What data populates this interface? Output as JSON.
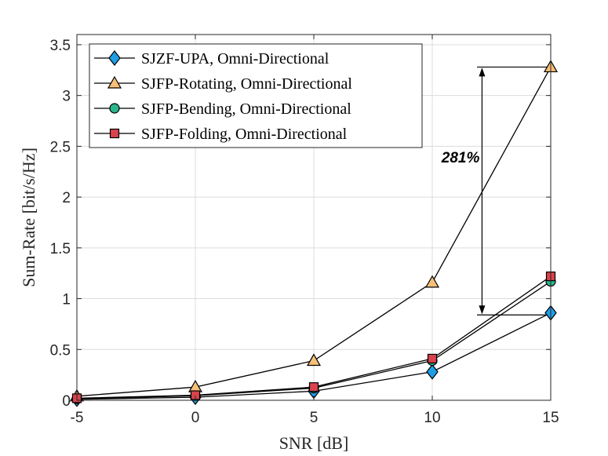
{
  "chart_data": {
    "type": "line",
    "title": "",
    "xlabel": "SNR [dB]",
    "ylabel": "Sum-Rate [bit/s/Hz]",
    "x": [
      -5,
      0,
      5,
      10,
      15
    ],
    "xlim": [
      -5,
      15
    ],
    "ylim": [
      0,
      3.6
    ],
    "xticks": [
      -5,
      0,
      5,
      10,
      15
    ],
    "xtick_labels": [
      "-5",
      "0",
      "5",
      "10",
      "15"
    ],
    "yticks": [
      0,
      0.5,
      1,
      1.5,
      2,
      2.5,
      3,
      3.5
    ],
    "ytick_labels": [
      "0",
      "0.5",
      "1",
      "1.5",
      "2",
      "2.5",
      "3",
      "3.5"
    ],
    "grid": true,
    "legend_position": "top-left",
    "series": [
      {
        "name": "SJZF-UPA, Omni-Directional",
        "marker": "diamond",
        "color": "#1f9ee6",
        "values": [
          0.01,
          0.03,
          0.09,
          0.28,
          0.86
        ]
      },
      {
        "name": "SJFP-Rotating, Omni-Directional",
        "marker": "triangle",
        "color": "#f7bf78",
        "values": [
          0.04,
          0.13,
          0.39,
          1.16,
          3.28
        ]
      },
      {
        "name": "SJFP-Bending, Omni-Directional",
        "marker": "circle",
        "color": "#2bb58c",
        "values": [
          0.015,
          0.045,
          0.12,
          0.39,
          1.17
        ]
      },
      {
        "name": "SJFP-Folding, Omni-Directional",
        "marker": "square",
        "color": "#d9434d",
        "values": [
          0.02,
          0.05,
          0.13,
          0.41,
          1.22
        ]
      }
    ],
    "annotations": [
      {
        "text": "281%",
        "x": 12.1,
        "y_from": 0.84,
        "y_to": 3.28
      }
    ]
  }
}
